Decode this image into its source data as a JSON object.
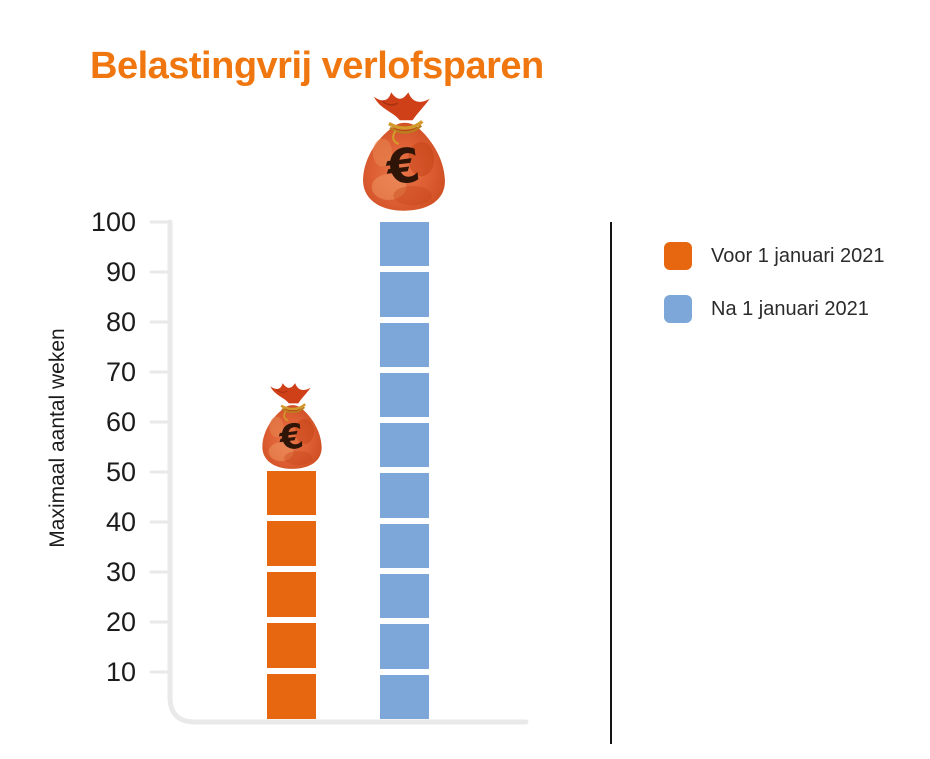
{
  "title": "Belastingvrij verlofsparen",
  "colors": {
    "title_orange": "#F0770F",
    "bar_orange": "#E6670F",
    "bar_blue": "#7DA7D8",
    "axis_gray": "#E9E9E9",
    "text_dark": "#1C1C1C",
    "separator_black": "#141414"
  },
  "chart_data": {
    "type": "bar",
    "title": "Belastingvrij verlofsparen",
    "ylabel": "Maximaal aantal weken",
    "xlabel": "",
    "ylim": [
      0,
      100
    ],
    "yticks": [
      10,
      20,
      30,
      40,
      50,
      60,
      70,
      80,
      90,
      100
    ],
    "grid": false,
    "legend_position": "right",
    "segment_size": 10,
    "categories": [
      "Voor 1 januari 2021",
      "Na 1 januari 2021"
    ],
    "series": [
      {
        "name": "Voor 1 januari 2021",
        "value": 50,
        "color": "#E6670F"
      },
      {
        "name": "Na 1 januari 2021",
        "value": 100,
        "color": "#7DA7D8"
      }
    ],
    "annotations": [
      {
        "icon": "money-bag-euro-icon",
        "on": "Voor 1 januari 2021",
        "size": "small"
      },
      {
        "icon": "money-bag-euro-icon",
        "on": "Na 1 januari 2021",
        "size": "large"
      }
    ]
  },
  "legend": {
    "items": [
      {
        "label": "Voor 1 januari 2021",
        "color": "#E6670F"
      },
      {
        "label": "Na 1 januari 2021",
        "color": "#7DA7D8"
      }
    ]
  }
}
